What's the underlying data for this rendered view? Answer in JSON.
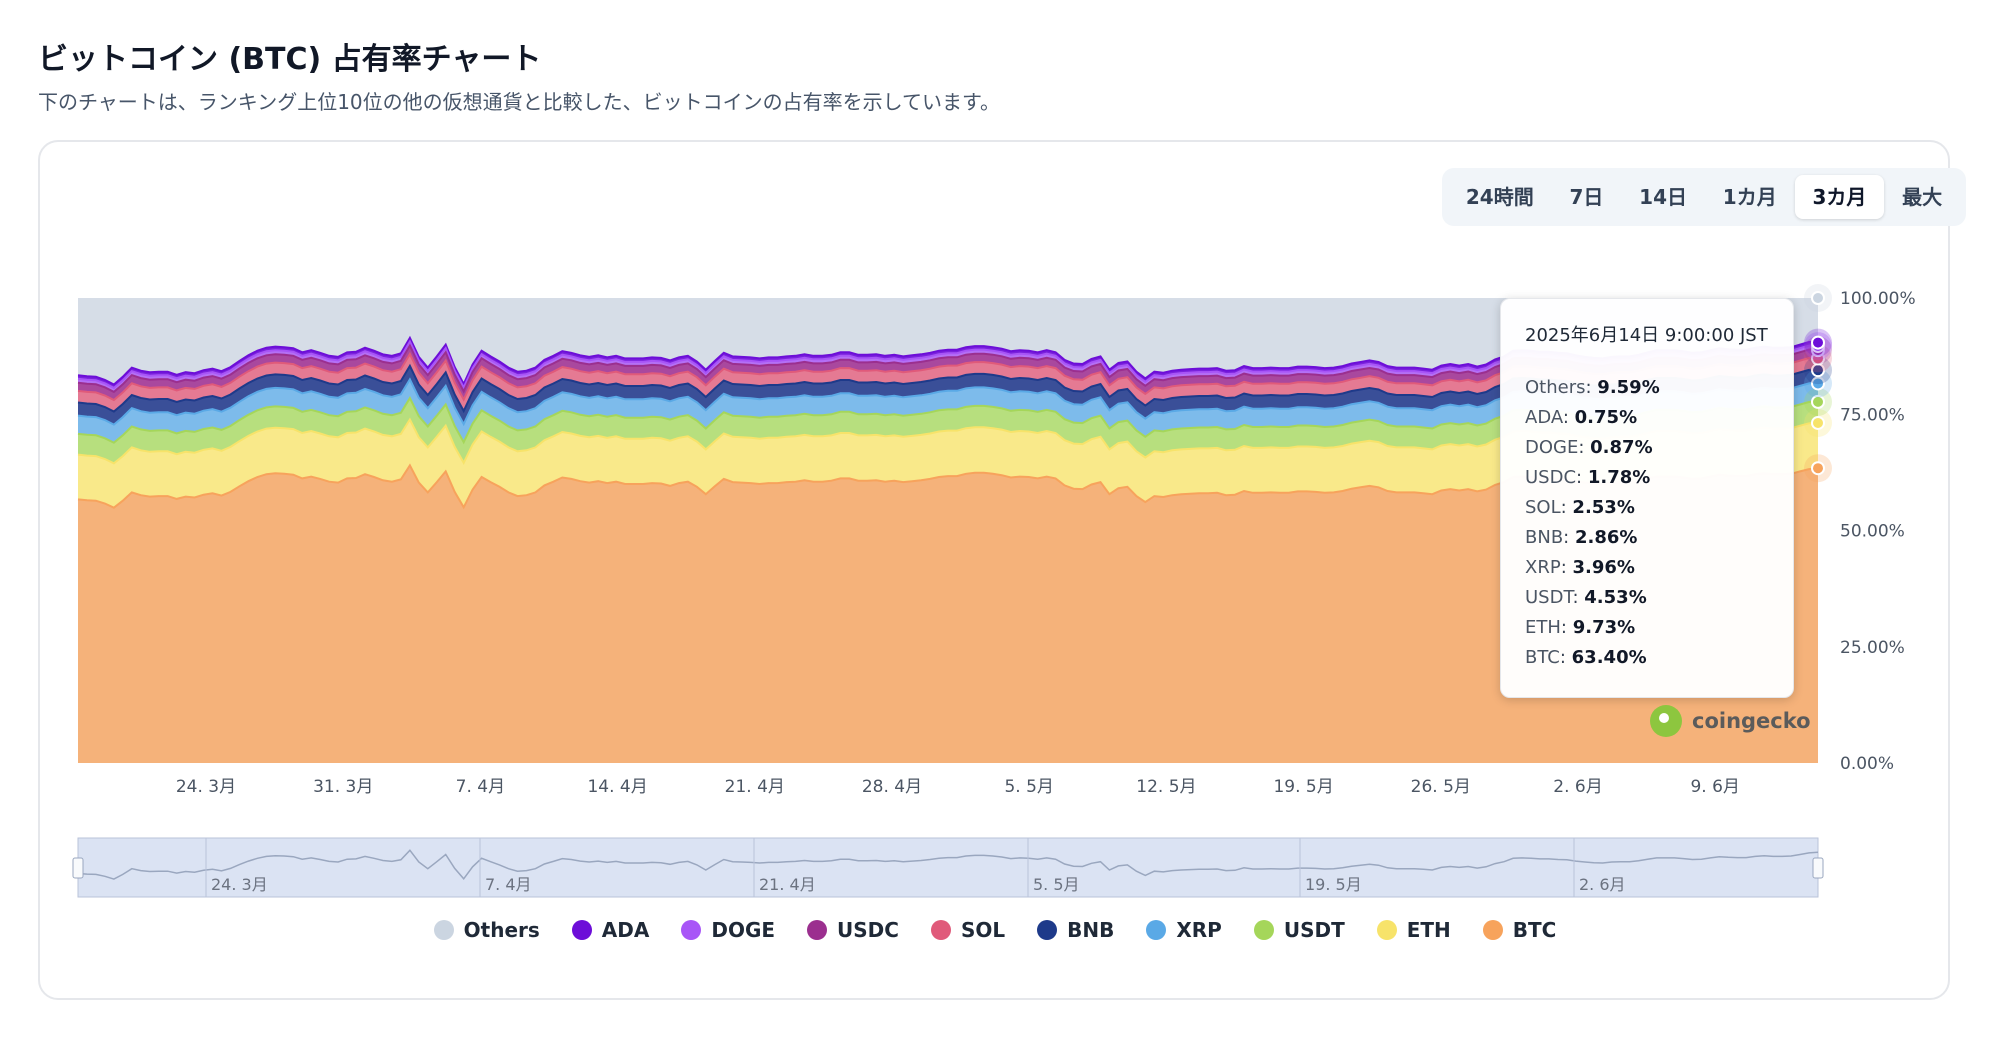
{
  "header": {
    "title": "ビットコイン (BTC) 占有率チャート",
    "subtitle": "下のチャートは、ランキング上位10位の他の仮想通貨と比較した、ビットコインの占有率を示しています。"
  },
  "range_tabs": [
    {
      "label": "24時間",
      "active": false
    },
    {
      "label": "7日",
      "active": false
    },
    {
      "label": "14日",
      "active": false
    },
    {
      "label": "1カ月",
      "active": false
    },
    {
      "label": "3カ月",
      "active": true
    },
    {
      "label": "最大",
      "active": false
    }
  ],
  "tooltip": {
    "title": "2025年6月14日 9:00:00 JST",
    "rows": [
      {
        "name": "Others",
        "value": "9.59%"
      },
      {
        "name": "ADA",
        "value": "0.75%"
      },
      {
        "name": "DOGE",
        "value": "0.87%"
      },
      {
        "name": "USDC",
        "value": "1.78%"
      },
      {
        "name": "SOL",
        "value": "2.53%"
      },
      {
        "name": "BNB",
        "value": "2.86%"
      },
      {
        "name": "XRP",
        "value": "3.96%"
      },
      {
        "name": "USDT",
        "value": "4.53%"
      },
      {
        "name": "ETH",
        "value": "9.73%"
      },
      {
        "name": "BTC",
        "value": "63.40%"
      }
    ]
  },
  "brand": "coingecko",
  "chart_data": {
    "type": "area",
    "stacked": true,
    "x_tick_labels": [
      "24. 3月",
      "31. 3月",
      "7. 4月",
      "14. 4月",
      "21. 4月",
      "28. 4月",
      "5. 5月",
      "12. 5月",
      "19. 5月",
      "26. 5月",
      "2. 6月",
      "9. 6月"
    ],
    "navigator_tick_labels": [
      "24. 3月",
      "7. 4月",
      "21. 4月",
      "5. 5月",
      "19. 5月",
      "2. 6月"
    ],
    "y_tick_labels": [
      "100.00%",
      "75.00%",
      "50.00%",
      "25.00%",
      "0.00%"
    ],
    "ylim": [
      0,
      100
    ],
    "grid": false,
    "legend_position": "bottom",
    "series": [
      {
        "name": "BTC",
        "color": "#f7a35c",
        "fill": "#f5b27a"
      },
      {
        "name": "ETH",
        "color": "#f7e36a",
        "fill": "#f9e98a"
      },
      {
        "name": "USDT",
        "color": "#a5d65a",
        "fill": "#b7df7e"
      },
      {
        "name": "XRP",
        "color": "#5aa9e6",
        "fill": "#7dbbeb"
      },
      {
        "name": "BNB",
        "color": "#1e3a8a",
        "fill": "#3a4f98"
      },
      {
        "name": "SOL",
        "color": "#e05a7a",
        "fill": "#e57a93"
      },
      {
        "name": "USDC",
        "color": "#9b2f8f",
        "fill": "#a9489e"
      },
      {
        "name": "DOGE",
        "color": "#a855f7",
        "fill": "#b470f5"
      },
      {
        "name": "ADA",
        "color": "#6d0ed8",
        "fill": "#7a22dc"
      },
      {
        "name": "Others",
        "color": "#cbd5e1",
        "fill": "#d6dde7"
      }
    ],
    "btc_dominance": [
      56.7,
      56.5,
      56.4,
      55.8,
      54.9,
      56.4,
      58.2,
      57.6,
      57.3,
      57.4,
      57.4,
      56.8,
      57.3,
      57.1,
      57.7,
      58.0,
      57.5,
      58.3,
      59.5,
      60.6,
      61.5,
      62.1,
      62.3,
      62.2,
      62.0,
      61.2,
      61.6,
      61.1,
      60.5,
      60.3,
      61.2,
      61.3,
      62.1,
      61.5,
      60.8,
      60.5,
      61.0,
      64.0,
      60.3,
      58.2,
      60.4,
      62.7,
      58.3,
      55.0,
      58.8,
      61.5,
      60.4,
      59.4,
      58.2,
      57.4,
      57.6,
      58.2,
      59.7,
      60.5,
      61.4,
      61.1,
      60.6,
      60.3,
      60.6,
      60.2,
      60.5,
      60.0,
      60.0,
      60.0,
      60.2,
      60.1,
      59.6,
      60.2,
      60.5,
      59.4,
      57.8,
      59.5,
      61.1,
      60.4,
      60.3,
      60.2,
      60.0,
      60.2,
      60.2,
      60.4,
      60.5,
      60.8,
      60.5,
      60.5,
      60.7,
      61.2,
      61.2,
      60.7,
      60.7,
      60.8,
      60.5,
      60.7,
      60.4,
      60.6,
      60.8,
      61.1,
      61.5,
      61.7,
      61.7,
      62.2,
      62.4,
      62.4,
      62.2,
      61.9,
      61.4,
      61.6,
      61.5,
      61.2,
      61.6,
      61.2,
      59.7,
      59.0,
      58.9,
      59.9,
      60.4,
      57.8,
      59.1,
      59.4,
      57.4,
      56.1,
      57.4,
      57.2,
      57.6,
      57.8,
      57.9,
      58.0,
      58.0,
      58.1,
      57.6,
      57.7,
      58.5,
      58.1,
      58.1,
      58.2,
      58.1,
      58.1,
      58.4,
      58.4,
      58.3,
      58.1,
      58.2,
      58.5,
      59.0,
      59.3,
      59.6,
      59.3,
      58.5,
      58.2,
      58.2,
      58.2,
      58.0,
      57.8,
      58.6,
      58.9,
      58.6,
      58.9,
      58.4,
      58.8,
      59.8,
      60.4,
      61.5,
      61.6,
      61.5,
      61.3,
      61.3,
      61.1,
      61.0,
      60.6,
      60.3,
      60.1,
      60.0,
      60.3,
      60.4,
      60.4,
      60.7,
      61.2,
      61.6,
      61.6,
      61.6,
      61.4,
      61.1,
      61.2,
      61.6,
      62.0,
      61.8,
      61.7,
      61.7,
      62.1,
      62.3,
      62.1,
      62.1,
      62.2,
      62.7,
      63.2,
      63.4
    ],
    "tooltip_date": "2025年6月14日 9:00:00 JST",
    "tooltip_values": {
      "Others": 9.59,
      "ADA": 0.75,
      "DOGE": 0.87,
      "USDC": 1.78,
      "SOL": 2.53,
      "BNB": 2.86,
      "XRP": 3.96,
      "USDT": 4.53,
      "ETH": 9.73,
      "BTC": 63.4
    }
  }
}
